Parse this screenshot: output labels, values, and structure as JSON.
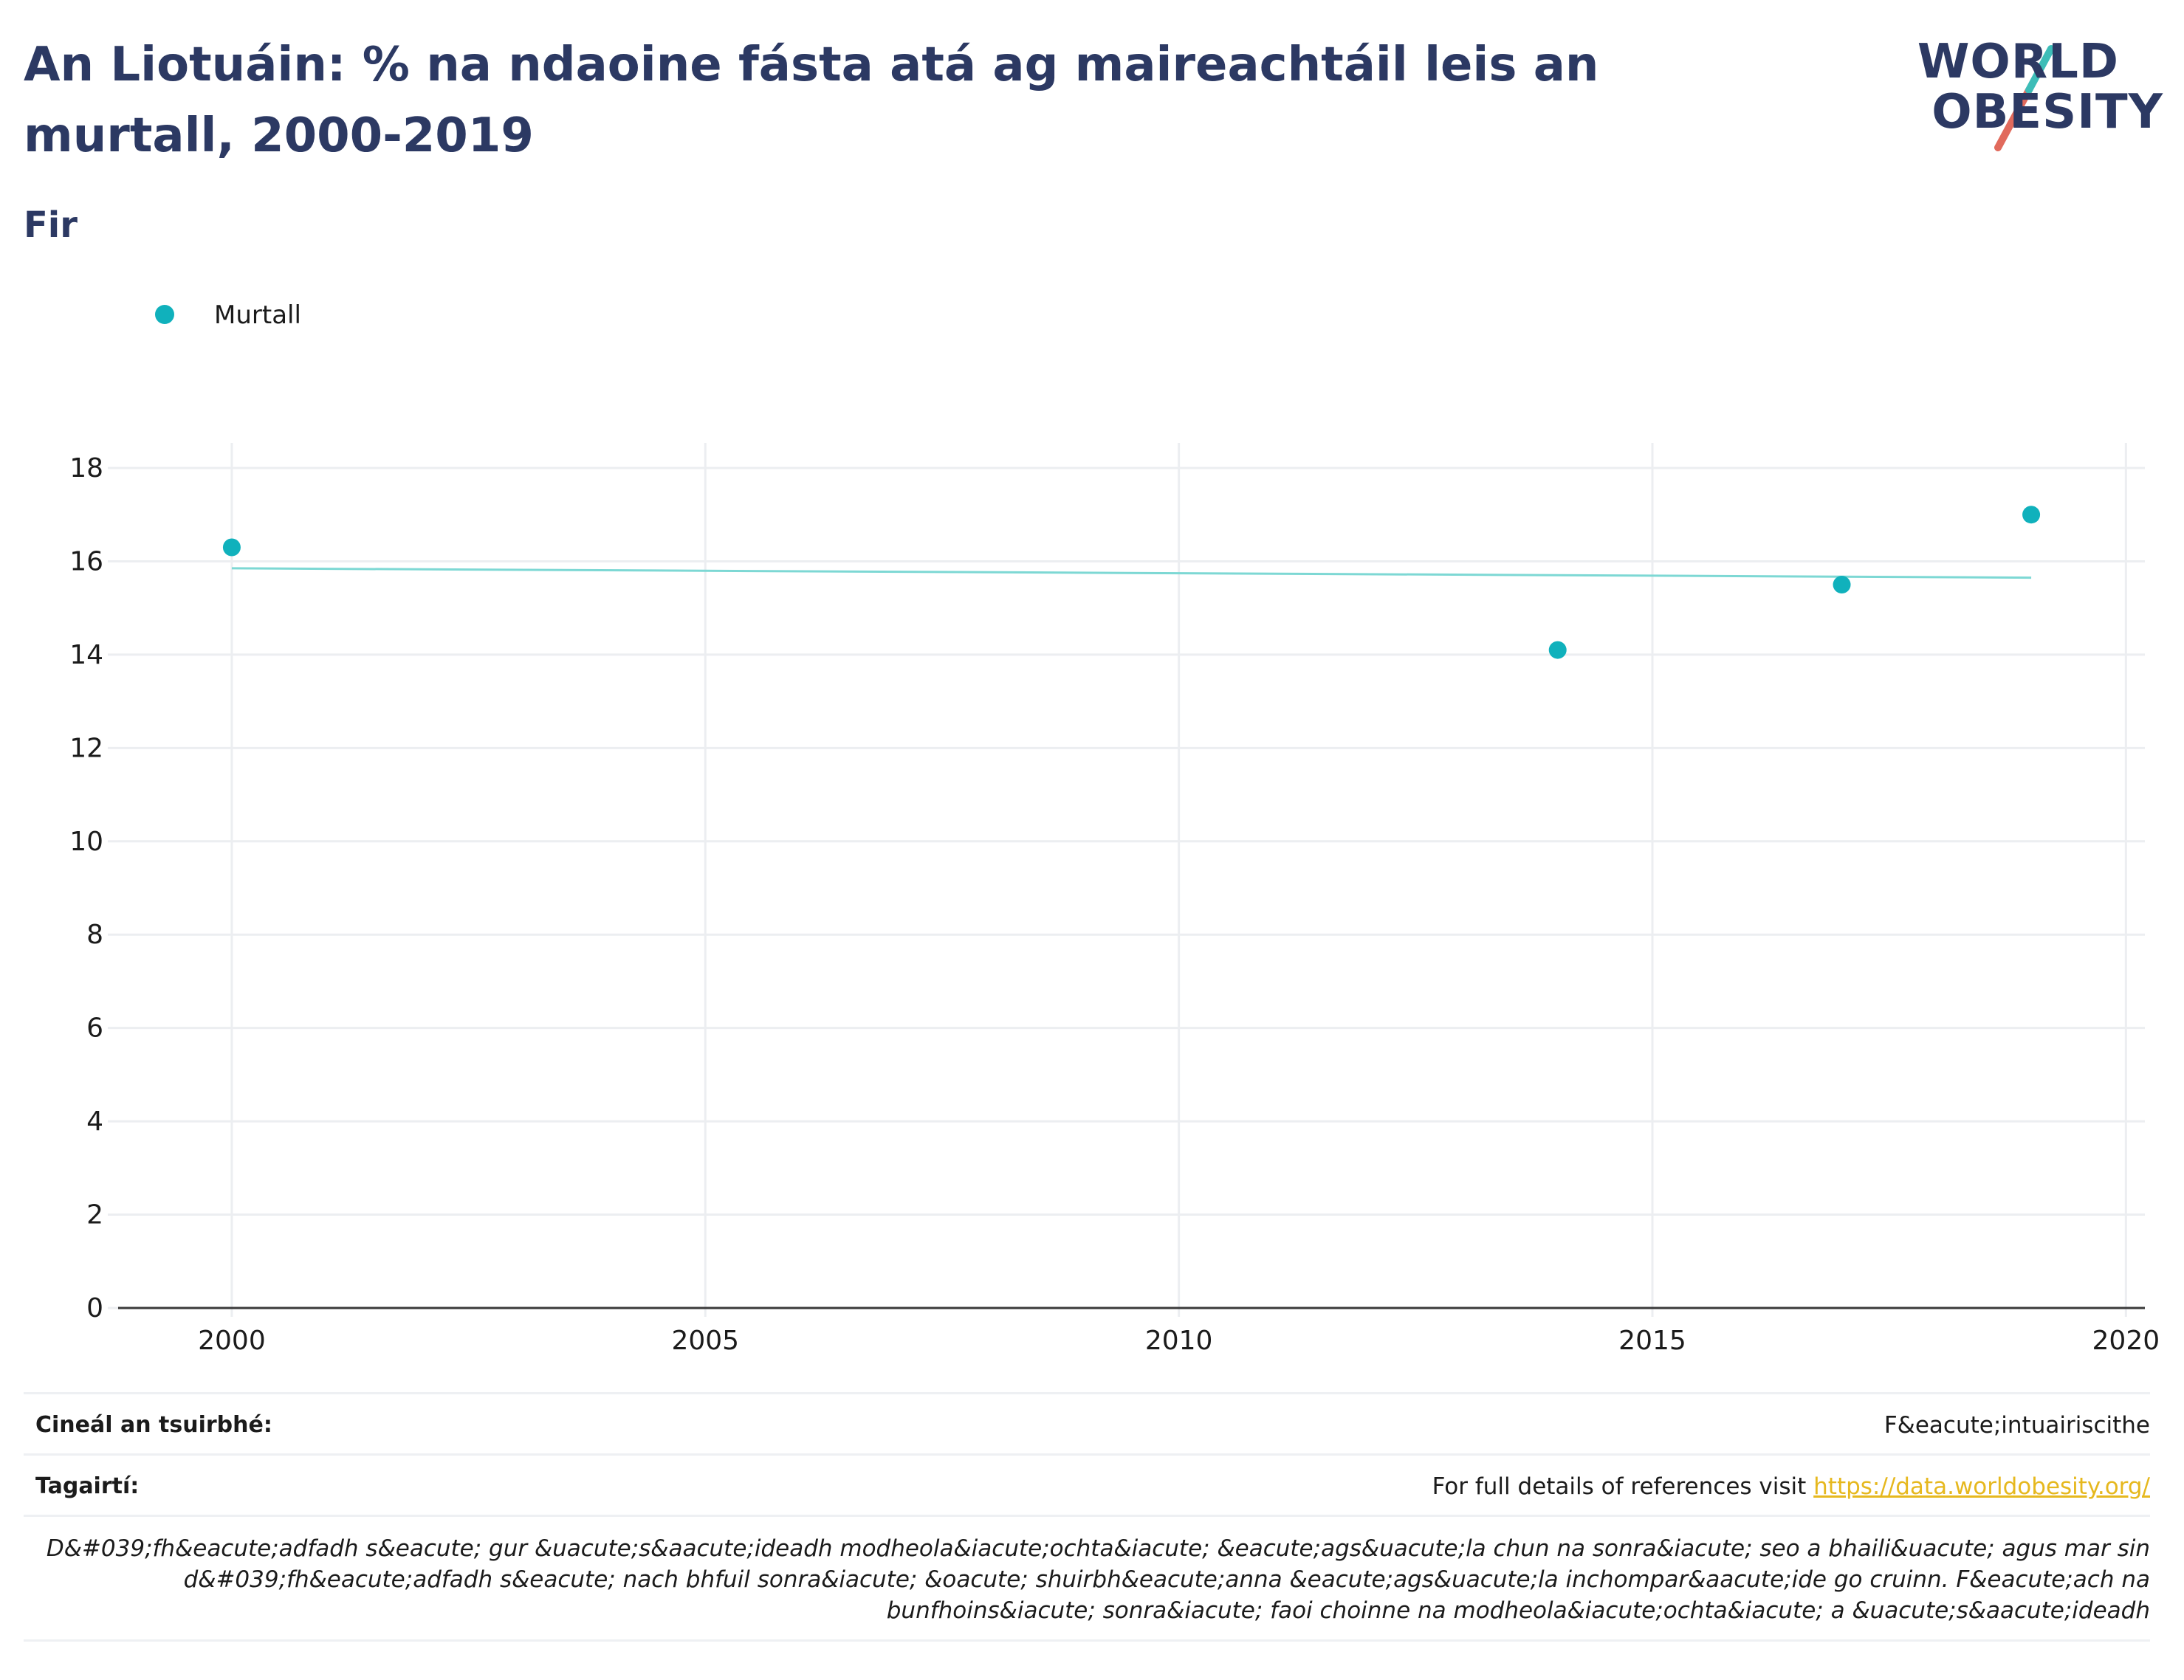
{
  "header": {
    "title": "An Liotuáin: % na ndaoine fásta atá ag maireachtáil leis an murtall, 2000-2019",
    "subtitle": "Fir"
  },
  "logo": {
    "line1": "WORLD",
    "line2": "OBESITY",
    "colors": {
      "text": "#2c3963",
      "slash_teal": "#3dbdb8",
      "slash_coral": "#e16a5c"
    }
  },
  "legend": {
    "label": "Murtall"
  },
  "colors": {
    "points": "#10b1bc",
    "trend": "#7dd8d4",
    "grid": "#eceef1",
    "axis": "#3a3a3a",
    "title": "#2c3963",
    "link": "#e6b81e"
  },
  "chart_data": {
    "type": "scatter",
    "title": "",
    "xlabel": "",
    "ylabel": "",
    "xlim": [
      1998.8,
      2020.2
    ],
    "ylim": [
      0,
      18
    ],
    "x_ticks": [
      2000,
      2005,
      2010,
      2015,
      2020
    ],
    "y_ticks": [
      0,
      2,
      4,
      6,
      8,
      10,
      12,
      14,
      16,
      18
    ],
    "grid": true,
    "legend_position": "top-left",
    "series": [
      {
        "name": "Murtall",
        "x": [
          2000,
          2014,
          2017,
          2019
        ],
        "y": [
          16.3,
          14.1,
          15.5,
          17.0
        ]
      }
    ],
    "trendline": {
      "x": [
        2000,
        2019
      ],
      "y": [
        15.85,
        15.65
      ]
    }
  },
  "meta": {
    "survey_label": "Cineál an tsuirbhé:",
    "survey_value": "F&eacute;intuairiscithe",
    "refs_label": "Tagairtí:",
    "refs_text": "For full details of references visit ",
    "refs_link": "https://data.worldobesity.org/",
    "note": "D&#039;fh&eacute;adfadh s&eacute; gur &uacute;s&aacute;ideadh modheola&iacute;ochta&iacute; &eacute;ags&uacute;la chun na sonra&iacute; seo a bhaili&uacute; agus mar sin d&#039;fh&eacute;adfadh s&eacute; nach bhfuil sonra&iacute; &oacute; shuirbh&eacute;anna &eacute;ags&uacute;la inchompar&aacute;ide go cruinn. F&eacute;ach na bunfhoins&iacute; sonra&iacute; faoi choinne na modheola&iacute;ochta&iacute; a &uacute;s&aacute;ideadh"
  }
}
